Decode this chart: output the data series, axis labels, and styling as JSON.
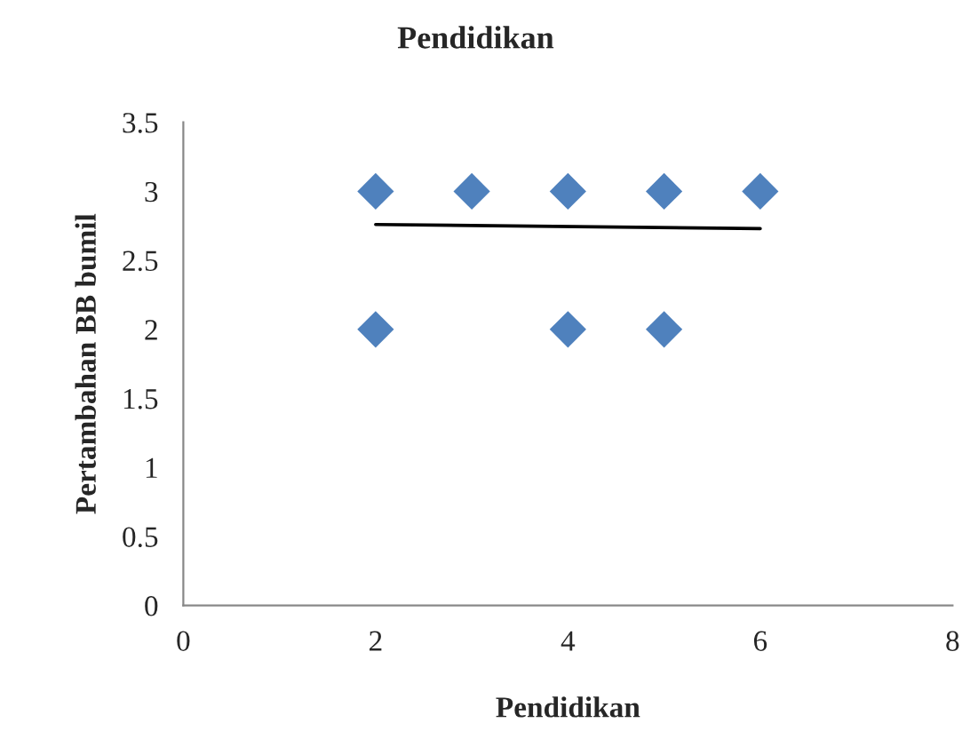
{
  "chart_data": {
    "type": "scatter",
    "title": "Pendidikan",
    "xlabel": "Pendidikan",
    "ylabel": "Pertambahan BB bumil",
    "series": [
      {
        "color": "#4f81bd",
        "marker": "diamond",
        "x": [
          2,
          3,
          4,
          5,
          6,
          2,
          4,
          5
        ],
        "values": [
          3,
          3,
          3,
          3,
          3,
          2,
          2,
          2
        ]
      },
      {
        "type": "line",
        "color": "#000000",
        "marker": "none",
        "line_style": "solid",
        "x": [
          2,
          6
        ],
        "values": [
          2.76,
          2.73
        ]
      }
    ],
    "xlim": [
      0,
      8
    ],
    "xticks": [
      0,
      2,
      4,
      6,
      8
    ],
    "ylim": [
      0,
      3.5
    ],
    "yticks": [
      0,
      0.5,
      1,
      1.5,
      2,
      2.5,
      3,
      3.5
    ],
    "grid": false,
    "legend": false
  }
}
